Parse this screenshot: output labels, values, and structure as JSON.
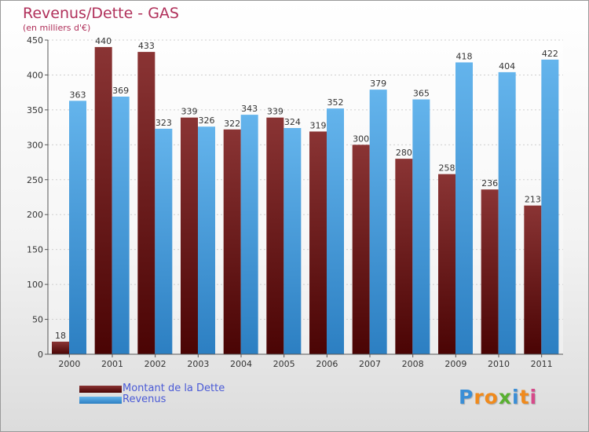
{
  "colors": {
    "title": "#b0305a",
    "debt_top": "#8a3434",
    "debt_bottom": "#4a0404",
    "revenue_top": "#64b4ec",
    "revenue_bottom": "#2c7fc2",
    "legend_text": "#4a5ad6"
  },
  "chart_data": {
    "type": "bar",
    "title": "Revenus/Dette - GAS",
    "subtitle": "(en milliers d'€)",
    "categories": [
      "2000",
      "2001",
      "2002",
      "2003",
      "2004",
      "2005",
      "2006",
      "2007",
      "2008",
      "2009",
      "2010",
      "2011"
    ],
    "series": [
      {
        "name": "Montant de la Dette",
        "values": [
          18,
          440,
          433,
          339,
          322,
          339,
          319,
          300,
          280,
          258,
          236,
          213
        ]
      },
      {
        "name": "Revenus",
        "values": [
          363,
          369,
          323,
          326,
          343,
          324,
          352,
          379,
          365,
          418,
          404,
          422
        ]
      }
    ],
    "ylim": [
      0,
      450
    ],
    "yticks": [
      0,
      50,
      100,
      150,
      200,
      250,
      300,
      350,
      400,
      450
    ],
    "grid": true,
    "legend_position": "bottom-left"
  },
  "legend": {
    "items": [
      {
        "label": "Montant de la Dette",
        "swatch": "debt"
      },
      {
        "label": "Revenus",
        "swatch": "revenue"
      }
    ]
  },
  "logo": {
    "letters": [
      "P",
      "r",
      "o",
      "x",
      "i",
      "t",
      "i"
    ],
    "colors": [
      "#3a8ed6",
      "#f08a1c",
      "#f08a1c",
      "#58b030",
      "#3a8ed6",
      "#f08a1c",
      "#d64a8a"
    ]
  }
}
